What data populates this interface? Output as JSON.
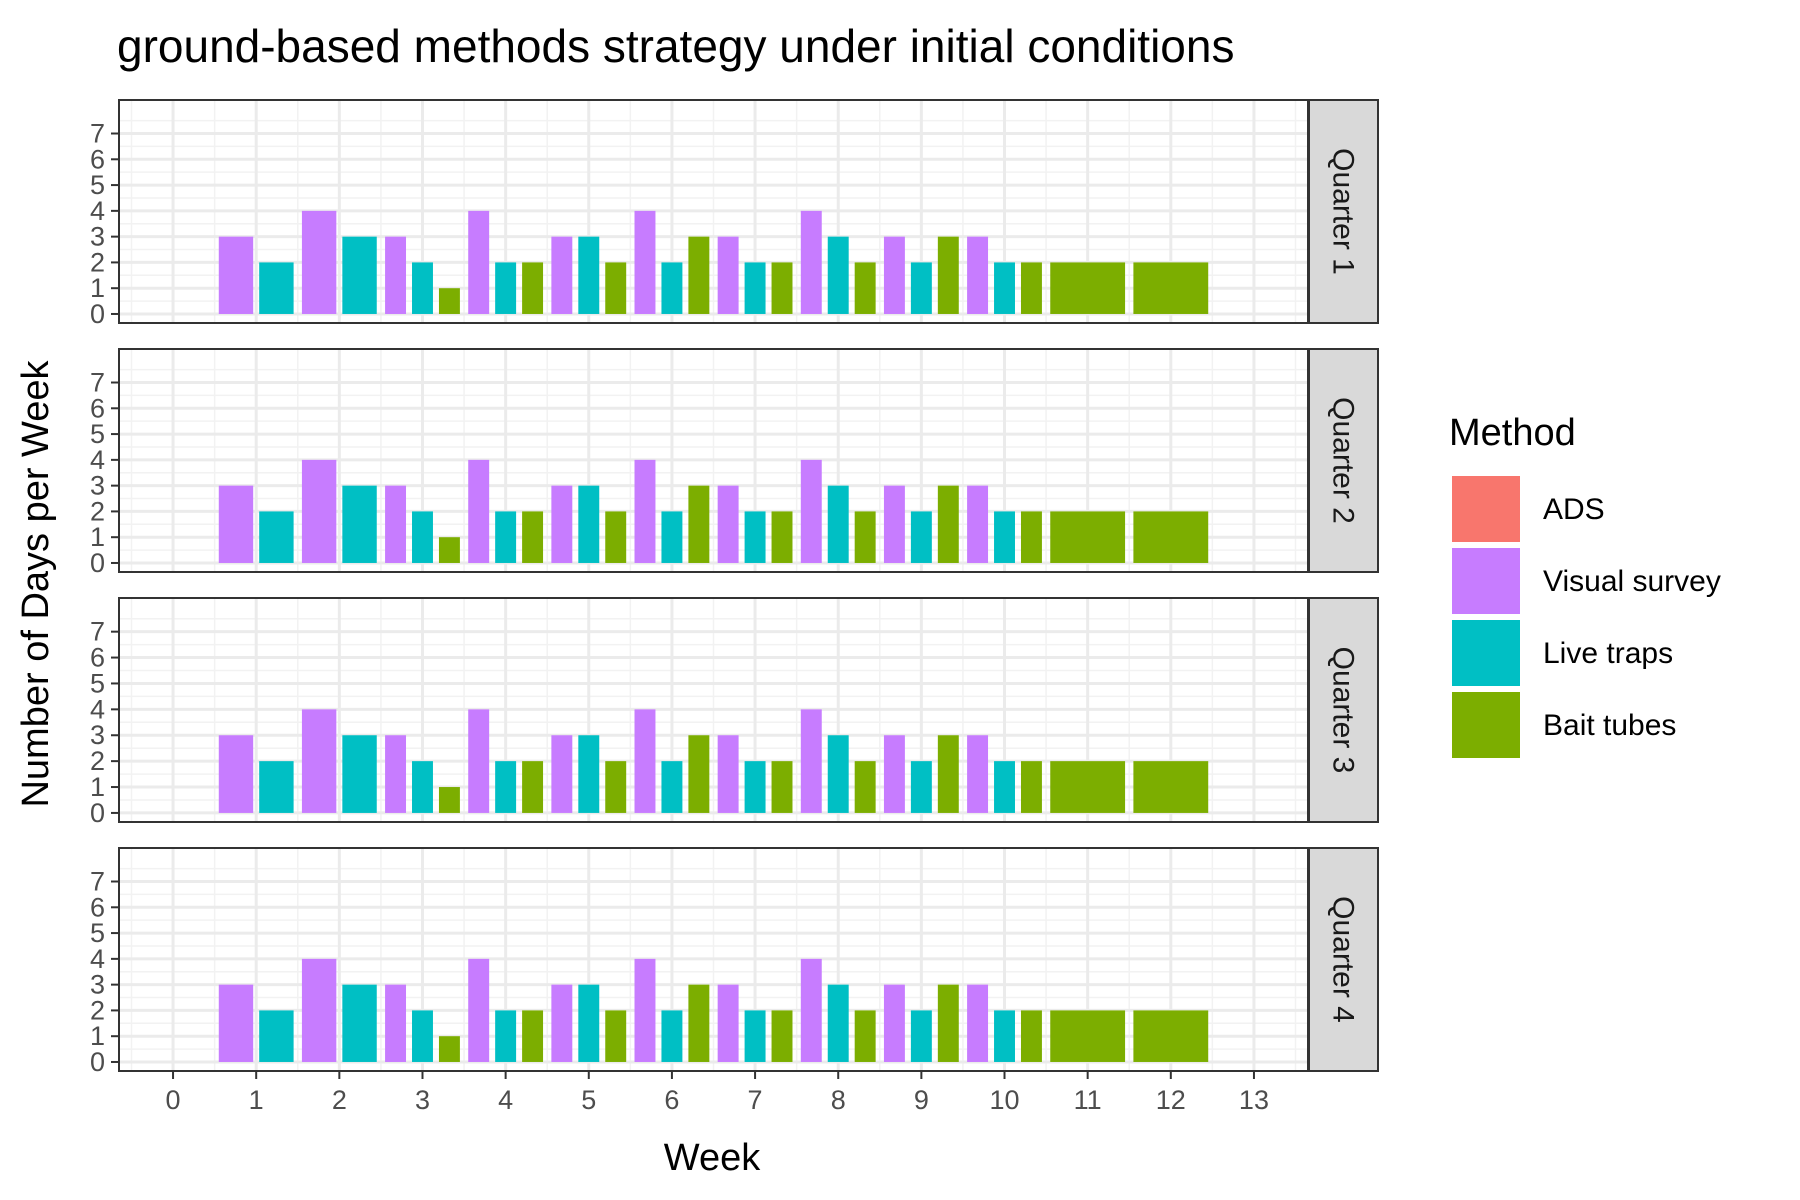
{
  "chart_data": {
    "type": "bar",
    "title": "ground-based methods strategy under initial conditions",
    "xlabel": "Week",
    "ylabel": "Number of Days per Week",
    "x_ticks": [
      0,
      1,
      2,
      3,
      4,
      5,
      6,
      7,
      8,
      9,
      10,
      11,
      12,
      13
    ],
    "y_ticks": [
      0,
      1,
      2,
      3,
      4,
      5,
      6,
      7
    ],
    "xlim": [
      -0.65,
      13.65
    ],
    "ylim": [
      -0.35,
      8.3
    ],
    "grid": true,
    "legend": {
      "title": "Method",
      "placement": "right",
      "entries": [
        "ADS",
        "Visual survey",
        "Live traps",
        "Bait tubes"
      ]
    },
    "colors": {
      "ADS": "#F8766D",
      "Visual survey": "#C77CFF",
      "Live traps": "#00BFC4",
      "Bait tubes": "#7CAE00"
    },
    "facets": [
      "Quarter 1",
      "Quarter 2",
      "Quarter 3",
      "Quarter 4"
    ],
    "weeks": [
      1,
      2,
      3,
      4,
      5,
      6,
      7,
      8,
      9,
      10,
      11,
      12
    ],
    "series": [
      {
        "name": "ADS",
        "values": [
          0,
          0,
          0,
          0,
          0,
          0,
          0,
          0,
          0,
          0,
          0,
          0
        ]
      },
      {
        "name": "Visual survey",
        "values": [
          3,
          4,
          3,
          4,
          3,
          4,
          3,
          4,
          3,
          3,
          0,
          0
        ]
      },
      {
        "name": "Live traps",
        "values": [
          2,
          3,
          2,
          2,
          3,
          2,
          2,
          3,
          2,
          2,
          0,
          0
        ]
      },
      {
        "name": "Bait tubes",
        "values": [
          0,
          0,
          1,
          2,
          2,
          3,
          2,
          2,
          3,
          2,
          2,
          2
        ]
      }
    ],
    "note_same_data_each_facet": true
  }
}
